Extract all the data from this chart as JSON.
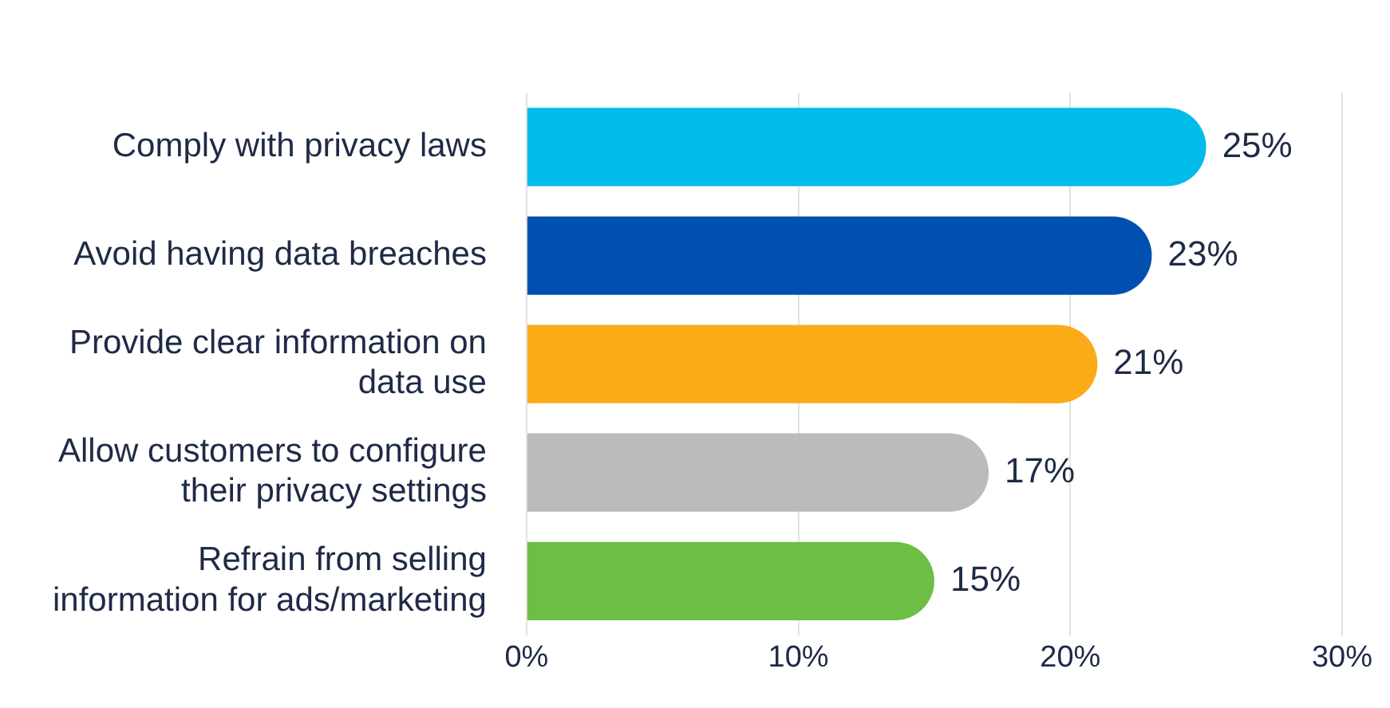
{
  "chart_data": {
    "type": "bar",
    "orientation": "horizontal",
    "categories": [
      "Comply with privacy laws",
      "Avoid having data breaches",
      "Provide clear information on data use",
      "Allow customers to configure their privacy settings",
      "Refrain from selling information for ads/marketing"
    ],
    "values": [
      25,
      23,
      21,
      17,
      15
    ],
    "colors": [
      "#00bceb",
      "#0051af",
      "#fbab18",
      "#bbbbbb",
      "#6cbe45"
    ],
    "value_labels": [
      "25%",
      "23%",
      "21%",
      "17%",
      "15%"
    ],
    "xlim": [
      0,
      30
    ],
    "xticks": [
      {
        "value": 0,
        "label": "0%"
      },
      {
        "value": 10,
        "label": "10%"
      },
      {
        "value": 20,
        "label": "20%"
      },
      {
        "value": 30,
        "label": "30%"
      }
    ],
    "grid": "x"
  }
}
